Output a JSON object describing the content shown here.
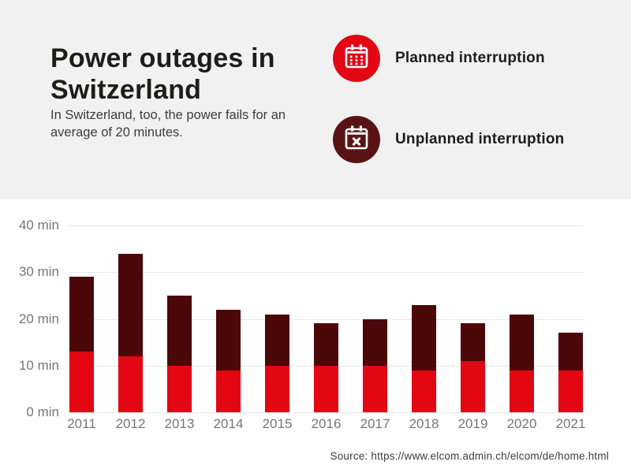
{
  "header": {
    "title": "Power outages in Switzerland",
    "subtitle": "In Switzerland, too, the power fails for an average of 20 minutes."
  },
  "legend": {
    "items": [
      {
        "label": "Planned interruption",
        "icon": "calendar-grid-icon",
        "color": "#e30613"
      },
      {
        "label": "Unplanned interruption",
        "icon": "calendar-x-icon",
        "color": "#5a1313"
      }
    ]
  },
  "colors": {
    "planned": "#e30613",
    "unplanned": "#4c0708",
    "header_background": "#f2f1f1",
    "chart_background": "#ffffff",
    "gridline": "#e8e8e8",
    "tick_text": "#767676"
  },
  "chart_data": {
    "type": "bar",
    "stacked": true,
    "title": "Power outages in Switzerland",
    "categories": [
      "2011",
      "2012",
      "2013",
      "2014",
      "2015",
      "2016",
      "2017",
      "2018",
      "2019",
      "2020",
      "2021"
    ],
    "series": [
      {
        "name": "Planned interruption",
        "color": "#e30613",
        "values": [
          13,
          12,
          10,
          9,
          10,
          10,
          10,
          9,
          11,
          9,
          9
        ]
      },
      {
        "name": "Unplanned interruption",
        "color": "#4c0708",
        "values": [
          16,
          22,
          15,
          13,
          11,
          9,
          10,
          14,
          8,
          12,
          8
        ]
      }
    ],
    "totals": [
      29,
      34,
      25,
      22,
      21,
      19,
      20,
      23,
      19,
      21,
      17
    ],
    "ylim": [
      0,
      40
    ],
    "yticks": [
      {
        "value": 0,
        "label": "0 min"
      },
      {
        "value": 10,
        "label": "10 min"
      },
      {
        "value": 20,
        "label": "20 min"
      },
      {
        "value": 30,
        "label": "30 min"
      },
      {
        "value": 40,
        "label": "40 min"
      }
    ],
    "grid": true,
    "legend_position": "top-right"
  },
  "source": {
    "text": "Source: https://www.elcom.admin.ch/elcom/de/home.html"
  }
}
